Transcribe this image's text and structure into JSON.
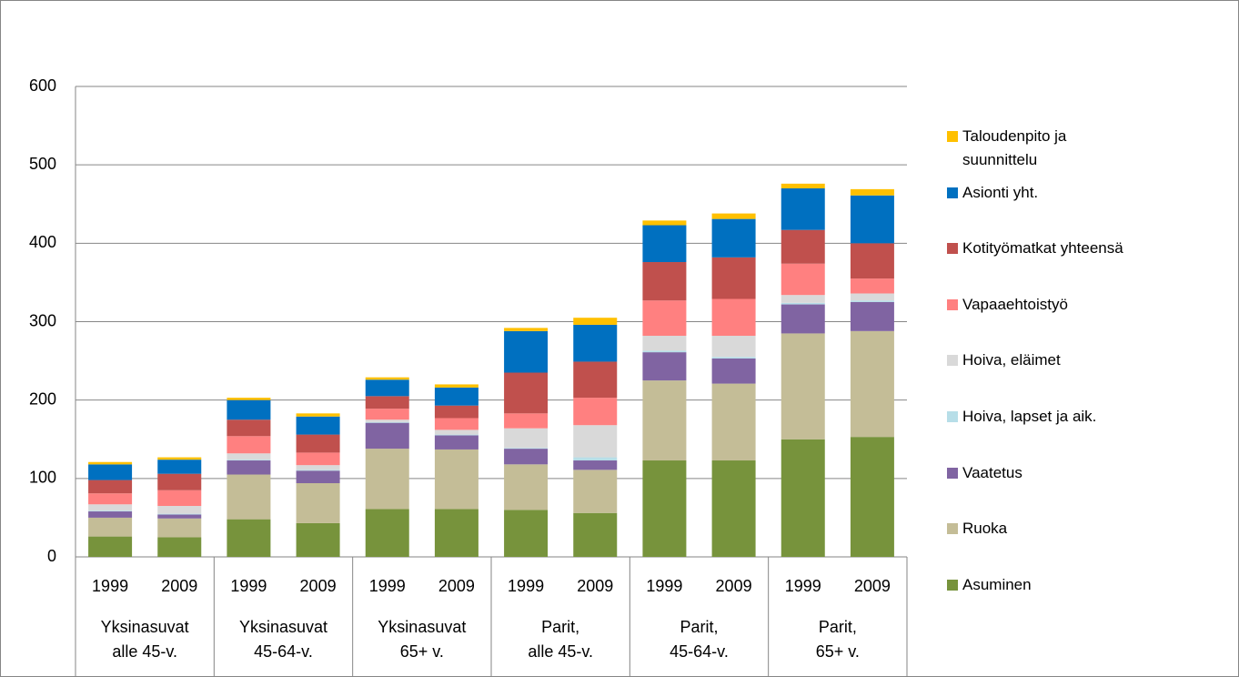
{
  "chart_data": {
    "type": "stacked_bar",
    "categories": [
      "1999",
      "2009",
      "1999",
      "2009",
      "1999",
      "2009",
      "1999",
      "2009",
      "1999",
      "2009",
      "1999",
      "2009"
    ],
    "groups": [
      [
        "Yksinasuvat",
        "alle 45-v."
      ],
      [
        "Yksinasuvat",
        "45-64-v."
      ],
      [
        "Yksinasuvat",
        "65+ v."
      ],
      [
        "Parit,",
        "alle 45-v."
      ],
      [
        "Parit,",
        "45-64-v."
      ],
      [
        "Parit,",
        "65+ v."
      ]
    ],
    "ylim": [
      0,
      600
    ],
    "yticks": [
      0,
      100,
      200,
      300,
      400,
      500,
      600
    ],
    "grid": true,
    "series": [
      {
        "name": "Asuminen",
        "color": "#77933c",
        "values": [
          26,
          25,
          48,
          43,
          61,
          61,
          60,
          56,
          123,
          123,
          150,
          153
        ]
      },
      {
        "name": "Ruoka",
        "color": "#c4bd97",
        "values": [
          24,
          24,
          57,
          51,
          77,
          76,
          58,
          55,
          102,
          98,
          135,
          135
        ]
      },
      {
        "name": "Vaatetus",
        "color": "#8064a2",
        "values": [
          8,
          5,
          18,
          16,
          33,
          18,
          20,
          12,
          36,
          32,
          37,
          37
        ]
      },
      {
        "name": "Hoiva, lapset ja aik.",
        "color": "#b7dee8",
        "values": [
          1,
          1,
          1,
          1,
          1,
          1,
          1,
          4,
          2,
          2,
          2,
          2
        ]
      },
      {
        "name": "Hoiva, eläimet",
        "color": "#d9d9d9",
        "values": [
          8,
          10,
          8,
          6,
          3,
          6,
          25,
          41,
          19,
          27,
          10,
          9
        ]
      },
      {
        "name": "Vapaaehtoistyö",
        "color": "#ff8080",
        "values": [
          14,
          20,
          22,
          16,
          14,
          15,
          19,
          35,
          45,
          47,
          40,
          19
        ]
      },
      {
        "name": "Kotityömatkat yhteensä",
        "color": "#c0504d",
        "values": [
          17,
          21,
          21,
          23,
          16,
          16,
          52,
          46,
          49,
          53,
          43,
          45
        ]
      },
      {
        "name": "Asionti yht.",
        "color": "#0070c0",
        "values": [
          20,
          18,
          25,
          23,
          21,
          23,
          53,
          47,
          47,
          49,
          53,
          61
        ]
      },
      {
        "name": "Taloudenpito ja suunnittelu",
        "color": "#ffc000",
        "values": [
          3,
          3,
          3,
          4,
          3,
          4,
          4,
          9,
          6,
          7,
          6,
          8
        ]
      }
    ]
  }
}
